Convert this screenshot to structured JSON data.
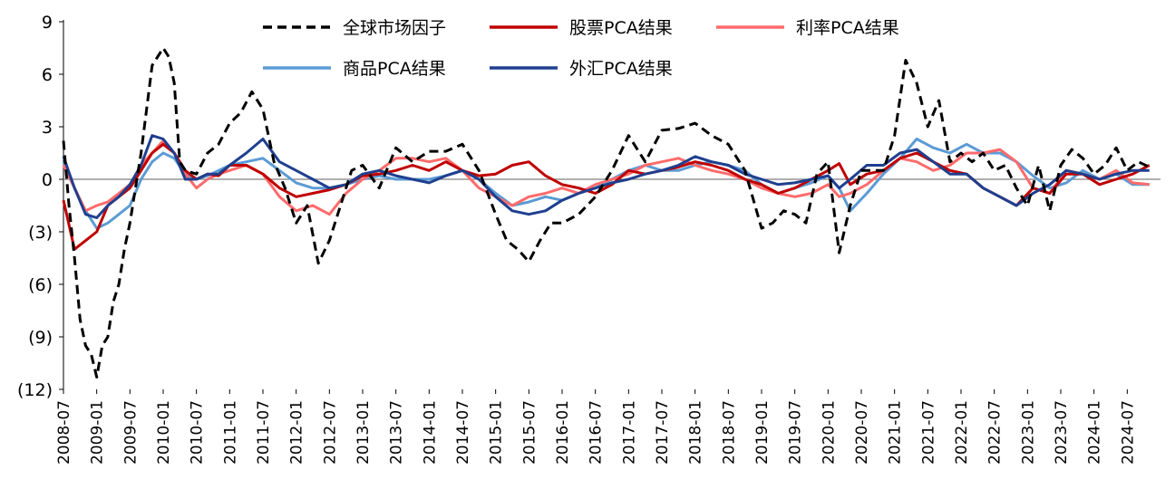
{
  "chart_data": {
    "type": "line",
    "title": "",
    "xlabel": "",
    "ylabel": "",
    "ylim": [
      -12,
      9
    ],
    "yticks": [
      9,
      6,
      3,
      0,
      -3,
      -6,
      -9,
      -12
    ],
    "ytick_labels": [
      "9",
      "6",
      "3",
      "0",
      "(3)",
      "(6)",
      "(9)",
      "(12)"
    ],
    "xlim": [
      2008.5,
      2025.0
    ],
    "xtick_labels": [
      "2008-07",
      "2009-01",
      "2009-07",
      "2010-01",
      "2010-07",
      "2011-01",
      "2011-07",
      "2012-01",
      "2012-07",
      "2013-01",
      "2013-07",
      "2014-01",
      "2014-07",
      "2015-01",
      "2015-07",
      "2016-01",
      "2016-07",
      "2017-01",
      "2017-07",
      "2018-01",
      "2018-07",
      "2019-01",
      "2019-07",
      "2020-01",
      "2020-07",
      "2021-01",
      "2021-07",
      "2022-01",
      "2022-07",
      "2023-01",
      "2023-07",
      "2024-01",
      "2024-07"
    ],
    "legend": "top",
    "series": [
      {
        "name": "全球市场因子",
        "color": "#000000",
        "dash": "dashed",
        "x": [
          "2008-07",
          "2008-08",
          "2008-09",
          "2008-10",
          "2008-11",
          "2008-12",
          "2009-01",
          "2009-02",
          "2009-03",
          "2009-04",
          "2009-05",
          "2009-06",
          "2009-07",
          "2009-08",
          "2009-09",
          "2009-10",
          "2009-11",
          "2009-12",
          "2010-01",
          "2010-02",
          "2010-03",
          "2010-04",
          "2010-05",
          "2010-07",
          "2010-09",
          "2010-11",
          "2011-01",
          "2011-03",
          "2011-05",
          "2011-07",
          "2011-09",
          "2011-11",
          "2012-01",
          "2012-03",
          "2012-05",
          "2012-07",
          "2012-09",
          "2012-11",
          "2013-01",
          "2013-04",
          "2013-07",
          "2013-10",
          "2014-01",
          "2014-04",
          "2014-07",
          "2014-10",
          "2015-01",
          "2015-03",
          "2015-05",
          "2015-07",
          "2015-09",
          "2015-11",
          "2016-01",
          "2016-04",
          "2016-07",
          "2016-10",
          "2017-01",
          "2017-04",
          "2017-07",
          "2017-10",
          "2018-01",
          "2018-04",
          "2018-07",
          "2018-10",
          "2019-01",
          "2019-03",
          "2019-05",
          "2019-07",
          "2019-09",
          "2019-11",
          "2020-01",
          "2020-03",
          "2020-05",
          "2020-07",
          "2020-09",
          "2020-11",
          "2021-01",
          "2021-03",
          "2021-05",
          "2021-07",
          "2021-09",
          "2021-11",
          "2022-01",
          "2022-03",
          "2022-05",
          "2022-07",
          "2022-09",
          "2022-11",
          "2023-01",
          "2023-03",
          "2023-05",
          "2023-07",
          "2023-09",
          "2023-11",
          "2024-01",
          "2024-03",
          "2024-05",
          "2024-07",
          "2024-09",
          "2024-11"
        ],
        "y": [
          2.2,
          -1.5,
          -4.5,
          -8.0,
          -9.5,
          -10.0,
          -11.3,
          -9.5,
          -9.0,
          -7.0,
          -6.0,
          -4.0,
          -2.5,
          -0.5,
          1.5,
          4.0,
          6.5,
          7.0,
          7.5,
          7.0,
          5.5,
          1.0,
          0.5,
          0.3,
          1.5,
          2.0,
          3.2,
          3.8,
          5.0,
          4.0,
          1.0,
          -0.5,
          -2.5,
          -1.5,
          -4.8,
          -3.5,
          -1.5,
          0.5,
          0.8,
          -0.5,
          1.8,
          1.0,
          1.6,
          1.6,
          2.0,
          0.5,
          -2.0,
          -3.5,
          -4.0,
          -4.7,
          -3.5,
          -2.5,
          -2.5,
          -2.0,
          -1.0,
          0.5,
          2.5,
          1.0,
          2.8,
          2.9,
          3.2,
          2.5,
          2.0,
          0.5,
          -2.8,
          -2.5,
          -1.8,
          -2.0,
          -2.5,
          0.3,
          1.0,
          -4.2,
          -1.5,
          0.5,
          0.5,
          0.5,
          2.5,
          6.8,
          5.5,
          3.0,
          4.5,
          1.0,
          1.5,
          1.0,
          1.5,
          0.5,
          0.8,
          -0.5,
          -1.5,
          0.8,
          -1.8,
          0.8,
          1.7,
          1.2,
          0.3,
          0.8,
          1.8,
          0.5,
          1.0,
          0.7
        ]
      },
      {
        "name": "股票PCA结果",
        "color": "#C00000",
        "dash": "solid",
        "x": [
          "2008-07",
          "2008-09",
          "2008-11",
          "2009-01",
          "2009-03",
          "2009-05",
          "2009-07",
          "2009-09",
          "2009-11",
          "2010-01",
          "2010-03",
          "2010-05",
          "2010-07",
          "2010-09",
          "2010-11",
          "2011-01",
          "2011-04",
          "2011-07",
          "2011-10",
          "2012-01",
          "2012-04",
          "2012-07",
          "2012-10",
          "2013-01",
          "2013-04",
          "2013-07",
          "2013-10",
          "2014-01",
          "2014-04",
          "2014-07",
          "2014-10",
          "2015-01",
          "2015-04",
          "2015-07",
          "2015-10",
          "2016-01",
          "2016-04",
          "2016-07",
          "2016-10",
          "2017-01",
          "2017-04",
          "2017-07",
          "2017-10",
          "2018-01",
          "2018-04",
          "2018-07",
          "2018-10",
          "2019-01",
          "2019-04",
          "2019-07",
          "2019-10",
          "2020-01",
          "2020-03",
          "2020-05",
          "2020-08",
          "2020-11",
          "2021-02",
          "2021-05",
          "2021-08",
          "2021-11",
          "2022-02",
          "2022-05",
          "2022-08",
          "2022-11",
          "2023-02",
          "2023-05",
          "2023-08",
          "2023-11",
          "2024-02",
          "2024-05",
          "2024-08",
          "2024-11"
        ],
        "y": [
          -1.2,
          -4.0,
          -3.5,
          -3.0,
          -1.5,
          -1.0,
          -0.5,
          0.5,
          1.5,
          2.0,
          1.5,
          0.5,
          0.0,
          0.3,
          0.2,
          0.8,
          0.8,
          0.3,
          -0.5,
          -1.0,
          -0.8,
          -0.6,
          -0.3,
          0.2,
          0.3,
          0.5,
          0.8,
          0.5,
          1.0,
          0.5,
          0.2,
          0.3,
          0.8,
          1.0,
          0.2,
          -0.3,
          -0.5,
          -0.8,
          -0.3,
          0.5,
          0.3,
          0.5,
          0.7,
          1.0,
          0.8,
          0.5,
          0.0,
          -0.3,
          -0.8,
          -0.5,
          0.0,
          0.5,
          0.9,
          -0.3,
          0.3,
          0.5,
          1.2,
          1.5,
          1.0,
          0.5,
          0.3,
          -0.5,
          -1.0,
          -1.5,
          -0.5,
          -0.8,
          0.3,
          0.3,
          -0.3,
          0.0,
          0.3,
          0.8
        ]
      },
      {
        "name": "利率PCA结果",
        "color": "#FF6B6B",
        "dash": "solid",
        "x": [
          "2008-07",
          "2008-09",
          "2008-11",
          "2009-01",
          "2009-03",
          "2009-05",
          "2009-07",
          "2009-09",
          "2009-11",
          "2010-01",
          "2010-03",
          "2010-05",
          "2010-07",
          "2010-09",
          "2010-11",
          "2011-01",
          "2011-04",
          "2011-07",
          "2011-10",
          "2012-01",
          "2012-04",
          "2012-07",
          "2012-10",
          "2013-01",
          "2013-04",
          "2013-07",
          "2013-10",
          "2014-01",
          "2014-04",
          "2014-07",
          "2014-10",
          "2015-01",
          "2015-04",
          "2015-07",
          "2015-10",
          "2016-01",
          "2016-04",
          "2016-07",
          "2016-10",
          "2017-01",
          "2017-04",
          "2017-07",
          "2017-10",
          "2018-01",
          "2018-04",
          "2018-07",
          "2018-10",
          "2019-01",
          "2019-04",
          "2019-07",
          "2019-10",
          "2020-01",
          "2020-03",
          "2020-05",
          "2020-08",
          "2020-11",
          "2021-02",
          "2021-05",
          "2021-08",
          "2021-11",
          "2022-02",
          "2022-05",
          "2022-08",
          "2022-11",
          "2023-02",
          "2023-05",
          "2023-08",
          "2023-11",
          "2024-02",
          "2024-05",
          "2024-08",
          "2024-11"
        ],
        "y": [
          0.8,
          -0.5,
          -1.8,
          -1.5,
          -1.3,
          -0.8,
          -0.3,
          0.8,
          1.5,
          2.2,
          1.5,
          0.3,
          -0.5,
          0.0,
          0.3,
          0.5,
          0.8,
          0.3,
          -1.0,
          -1.8,
          -1.5,
          -2.0,
          -0.8,
          0.0,
          0.5,
          1.2,
          1.2,
          1.0,
          1.2,
          0.5,
          -0.5,
          -1.0,
          -1.5,
          -1.0,
          -0.8,
          -0.5,
          -0.8,
          -0.3,
          0.0,
          0.3,
          0.8,
          1.0,
          1.2,
          0.8,
          0.5,
          0.3,
          0.0,
          -0.5,
          -0.8,
          -1.0,
          -0.8,
          -0.3,
          -1.0,
          -0.8,
          -0.3,
          0.5,
          1.2,
          1.0,
          0.5,
          0.8,
          1.5,
          1.5,
          1.7,
          1.0,
          -0.5,
          -0.8,
          0.5,
          0.3,
          0.0,
          0.5,
          -0.2,
          -0.3
        ]
      },
      {
        "name": "商品PCA结果",
        "color": "#5B9BD5",
        "dash": "solid",
        "x": [
          "2008-07",
          "2008-09",
          "2008-11",
          "2009-01",
          "2009-03",
          "2009-05",
          "2009-07",
          "2009-09",
          "2009-11",
          "2010-01",
          "2010-03",
          "2010-05",
          "2010-07",
          "2010-09",
          "2010-11",
          "2011-01",
          "2011-04",
          "2011-07",
          "2011-10",
          "2012-01",
          "2012-04",
          "2012-07",
          "2012-10",
          "2013-01",
          "2013-04",
          "2013-07",
          "2013-10",
          "2014-01",
          "2014-04",
          "2014-07",
          "2014-10",
          "2015-01",
          "2015-04",
          "2015-07",
          "2015-10",
          "2016-01",
          "2016-04",
          "2016-07",
          "2016-10",
          "2017-01",
          "2017-04",
          "2017-07",
          "2017-10",
          "2018-01",
          "2018-04",
          "2018-07",
          "2018-10",
          "2019-01",
          "2019-04",
          "2019-07",
          "2019-10",
          "2020-01",
          "2020-03",
          "2020-05",
          "2020-08",
          "2020-11",
          "2021-02",
          "2021-05",
          "2021-08",
          "2021-11",
          "2022-02",
          "2022-05",
          "2022-08",
          "2022-11",
          "2023-02",
          "2023-05",
          "2023-08",
          "2023-11",
          "2024-02",
          "2024-05",
          "2024-08",
          "2024-11"
        ],
        "y": [
          1.0,
          -0.5,
          -1.8,
          -2.8,
          -2.5,
          -2.0,
          -1.5,
          0.0,
          1.0,
          1.5,
          1.2,
          0.3,
          0.0,
          0.2,
          0.5,
          0.8,
          1.0,
          1.2,
          0.5,
          -0.2,
          -0.5,
          -0.5,
          -0.3,
          0.0,
          0.2,
          0.0,
          0.0,
          0.0,
          0.2,
          0.5,
          0.0,
          -0.8,
          -1.5,
          -1.3,
          -1.0,
          -1.2,
          -0.8,
          -0.5,
          0.0,
          0.5,
          0.8,
          0.5,
          0.5,
          0.8,
          1.0,
          0.8,
          0.5,
          -0.3,
          -0.8,
          -0.5,
          -0.2,
          0.2,
          -0.5,
          -1.8,
          -0.8,
          0.3,
          1.2,
          2.3,
          1.8,
          1.5,
          2.0,
          1.5,
          1.5,
          1.0,
          0.2,
          -0.5,
          -0.2,
          0.5,
          0.0,
          0.3,
          -0.3,
          -0.3
        ]
      },
      {
        "name": "外汇PCA结果",
        "color": "#1F3F8F",
        "dash": "solid",
        "x": [
          "2008-07",
          "2008-09",
          "2008-11",
          "2009-01",
          "2009-03",
          "2009-05",
          "2009-07",
          "2009-09",
          "2009-11",
          "2010-01",
          "2010-03",
          "2010-05",
          "2010-07",
          "2010-09",
          "2010-11",
          "2011-01",
          "2011-04",
          "2011-07",
          "2011-10",
          "2012-01",
          "2012-04",
          "2012-07",
          "2012-10",
          "2013-01",
          "2013-04",
          "2013-07",
          "2013-10",
          "2014-01",
          "2014-04",
          "2014-07",
          "2014-10",
          "2015-01",
          "2015-04",
          "2015-07",
          "2015-10",
          "2016-01",
          "2016-04",
          "2016-07",
          "2016-10",
          "2017-01",
          "2017-04",
          "2017-07",
          "2017-10",
          "2018-01",
          "2018-04",
          "2018-07",
          "2018-10",
          "2019-01",
          "2019-04",
          "2019-07",
          "2019-10",
          "2020-01",
          "2020-03",
          "2020-05",
          "2020-08",
          "2020-11",
          "2021-02",
          "2021-05",
          "2021-08",
          "2021-11",
          "2022-02",
          "2022-05",
          "2022-08",
          "2022-11",
          "2023-02",
          "2023-05",
          "2023-08",
          "2023-11",
          "2024-02",
          "2024-05",
          "2024-08",
          "2024-11"
        ],
        "y": [
          1.3,
          -0.5,
          -2.0,
          -2.2,
          -1.5,
          -1.0,
          -0.3,
          0.8,
          2.5,
          2.3,
          1.5,
          0.0,
          0.0,
          0.3,
          0.3,
          0.8,
          1.5,
          2.3,
          1.0,
          0.5,
          0.0,
          -0.5,
          -0.3,
          0.3,
          0.5,
          0.2,
          0.0,
          -0.2,
          0.2,
          0.5,
          0.0,
          -1.0,
          -1.8,
          -2.0,
          -1.8,
          -1.2,
          -0.8,
          -0.5,
          -0.2,
          0.0,
          0.3,
          0.5,
          0.8,
          1.3,
          1.0,
          0.8,
          0.3,
          0.0,
          -0.3,
          -0.2,
          0.0,
          0.2,
          -0.5,
          0.0,
          0.8,
          0.8,
          1.5,
          1.7,
          1.0,
          0.3,
          0.3,
          -0.5,
          -1.0,
          -1.5,
          -0.8,
          -0.3,
          0.5,
          0.3,
          0.0,
          0.3,
          0.5,
          0.5
        ]
      }
    ]
  }
}
